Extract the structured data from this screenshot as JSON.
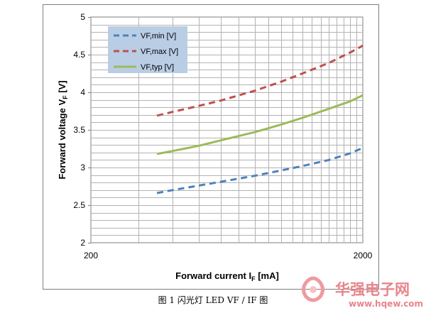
{
  "chart_data": {
    "type": "line",
    "xlabel_main": "Forward current I",
    "xlabel_sub": "F",
    "xlabel_unit": " [mA]",
    "ylabel_main": "Forward voltage V",
    "ylabel_sub": "F",
    "ylabel_unit": " [V]",
    "x_scale": "log",
    "xlim": [
      200,
      2000
    ],
    "ylim": [
      2,
      5
    ],
    "x_ticks": [
      "200",
      "2000"
    ],
    "y_ticks": [
      "2",
      "2.5",
      "3",
      "3.5",
      "4",
      "4.5",
      "5"
    ],
    "grid": true,
    "legend_position": "top-left",
    "series": [
      {
        "name": "VF,min [V]",
        "color": "#4f81bd",
        "style": "dashed",
        "x": [
          350,
          400,
          500,
          600,
          800,
          1000,
          1200,
          1500,
          1800,
          2000
        ],
        "y": [
          2.66,
          2.7,
          2.76,
          2.81,
          2.89,
          2.96,
          3.02,
          3.1,
          3.19,
          3.26
        ]
      },
      {
        "name": "VF,max [V]",
        "color": "#c0504d",
        "style": "dashed",
        "x": [
          350,
          400,
          500,
          600,
          800,
          1000,
          1200,
          1500,
          1800,
          2000
        ],
        "y": [
          3.69,
          3.74,
          3.82,
          3.89,
          4.02,
          4.14,
          4.25,
          4.39,
          4.53,
          4.62
        ]
      },
      {
        "name": "VF,typ [V]",
        "color": "#9bbb59",
        "style": "solid",
        "x": [
          350,
          400,
          500,
          600,
          800,
          1000,
          1200,
          1500,
          1800,
          2000
        ],
        "y": [
          3.18,
          3.22,
          3.29,
          3.36,
          3.47,
          3.57,
          3.66,
          3.78,
          3.88,
          3.96
        ]
      }
    ]
  },
  "caption": "图 1 闪光灯 LED VF / IF 图",
  "watermark": {
    "name": "华强电子网",
    "url": "www.hqew.com",
    "color": "#e8858b"
  }
}
